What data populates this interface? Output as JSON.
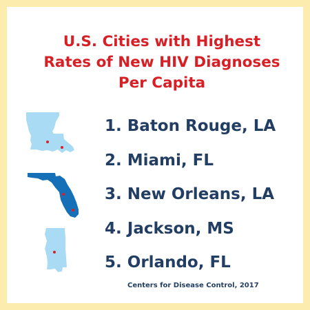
{
  "title": [
    "U.S. Cities with Highest",
    "Rates of New HIV Diagnoses",
    "Per Capita"
  ],
  "cities": [
    {
      "rank": "1.",
      "name": "Baton Rouge, LA"
    },
    {
      "rank": "2.",
      "name": "Miami, FL"
    },
    {
      "rank": "3.",
      "name": "New Orleans, LA"
    },
    {
      "rank": "4.",
      "name": "Jackson, MS"
    },
    {
      "rank": "5.",
      "name": "Orlando, FL"
    }
  ],
  "source": "Centers for Disease Control, 2017",
  "colors": {
    "border": "#fcedaf",
    "title": "#d71f26",
    "text": "#233e63",
    "map_light": "#a9dcf4",
    "map_dark": "#1570b8",
    "marker": "#d71f26"
  },
  "icons": [
    "louisiana-map-icon",
    "florida-map-icon",
    "mississippi-map-icon"
  ]
}
